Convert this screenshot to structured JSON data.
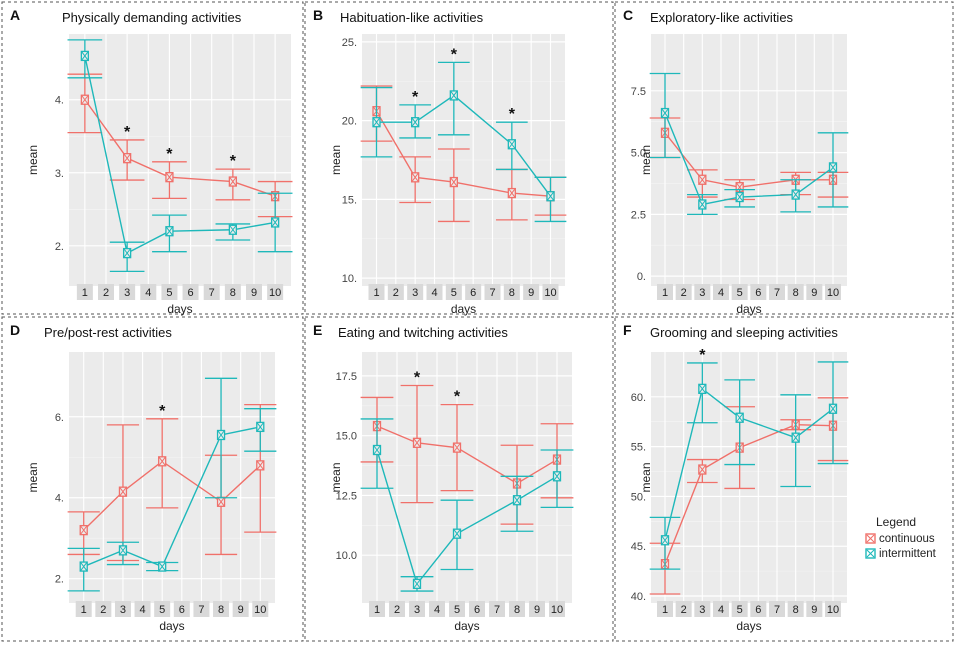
{
  "legend": {
    "title": "Legend",
    "items": [
      {
        "label": "continuous",
        "color": "#F0706A"
      },
      {
        "label": "intermittent",
        "color": "#1EB8BA"
      }
    ]
  },
  "chart_data": [
    {
      "letter": "A",
      "type": "line",
      "title": "Physically demanding activities",
      "xlabel": "days",
      "ylabel": "mean",
      "ylim": [
        1.45,
        4.9
      ],
      "yticks": [
        "2.",
        "3.",
        "4."
      ],
      "ytick_values": [
        2,
        3,
        4
      ],
      "categories": [
        "1",
        "2",
        "3",
        "4",
        "5",
        "6",
        "7",
        "8",
        "9",
        "10"
      ],
      "significant_days": [
        "3",
        "5",
        "8"
      ],
      "series": [
        {
          "name": "continuous",
          "x": [
            1,
            3,
            5,
            8,
            10
          ],
          "values": [
            4.0,
            3.2,
            2.94,
            2.88,
            2.68
          ],
          "lower": [
            3.55,
            2.9,
            2.65,
            2.63,
            2.4
          ],
          "upper": [
            4.35,
            3.45,
            3.15,
            3.05,
            2.88
          ]
        },
        {
          "name": "intermittent",
          "x": [
            1,
            3,
            5,
            8,
            10
          ],
          "values": [
            4.6,
            1.9,
            2.2,
            2.22,
            2.32
          ],
          "lower": [
            4.3,
            1.65,
            1.92,
            2.08,
            1.92
          ],
          "upper": [
            4.82,
            2.05,
            2.42,
            2.3,
            2.72
          ]
        }
      ]
    },
    {
      "letter": "B",
      "type": "line",
      "title": "Habituation-like activities",
      "xlabel": "days",
      "ylabel": "mean",
      "ylim": [
        9.5,
        25.5
      ],
      "yticks": [
        "10.",
        "15.",
        "20.",
        "25."
      ],
      "ytick_values": [
        10,
        15,
        20,
        25
      ],
      "categories": [
        "1",
        "2",
        "3",
        "4",
        "5",
        "6",
        "7",
        "8",
        "9",
        "10"
      ],
      "significant_days": [
        "3",
        "5",
        "8"
      ],
      "series": [
        {
          "name": "continuous",
          "x": [
            1,
            3,
            5,
            8,
            10
          ],
          "values": [
            20.6,
            16.4,
            16.1,
            15.4,
            15.2
          ],
          "lower": [
            18.7,
            14.8,
            13.6,
            13.7,
            14.0
          ],
          "upper": [
            22.2,
            17.7,
            18.2,
            16.9,
            16.4
          ]
        },
        {
          "name": "intermittent",
          "x": [
            1,
            3,
            5,
            8,
            10
          ],
          "values": [
            19.9,
            19.9,
            21.6,
            18.5,
            15.2
          ],
          "lower": [
            17.7,
            18.9,
            19.1,
            16.9,
            13.6
          ],
          "upper": [
            22.1,
            21.0,
            23.7,
            19.9,
            16.4
          ]
        }
      ]
    },
    {
      "letter": "C",
      "type": "line",
      "title": "Exploratory-like activities",
      "xlabel": "days",
      "ylabel": "mean",
      "ylim": [
        -0.4,
        9.8
      ],
      "yticks": [
        "0.",
        "2.5",
        "5.0",
        "7.5"
      ],
      "ytick_values": [
        0,
        2.5,
        5,
        7.5
      ],
      "categories": [
        "1",
        "2",
        "3",
        "4",
        "5",
        "6",
        "7",
        "8",
        "9",
        "10"
      ],
      "significant_days": [],
      "series": [
        {
          "name": "continuous",
          "x": [
            1,
            3,
            5,
            8,
            10
          ],
          "values": [
            5.8,
            3.9,
            3.6,
            3.9,
            3.9
          ],
          "lower": [
            4.8,
            3.2,
            3.1,
            3.3,
            3.2
          ],
          "upper": [
            6.4,
            4.3,
            3.9,
            4.2,
            4.2
          ]
        },
        {
          "name": "intermittent",
          "x": [
            1,
            3,
            5,
            8,
            10
          ],
          "values": [
            6.6,
            2.9,
            3.2,
            3.3,
            4.4
          ],
          "lower": [
            4.8,
            2.5,
            2.8,
            2.6,
            2.8
          ],
          "upper": [
            8.2,
            3.3,
            3.5,
            3.9,
            5.8
          ]
        }
      ]
    },
    {
      "letter": "D",
      "type": "line",
      "title": "Pre/post-rest activities",
      "xlabel": "days",
      "ylabel": "mean",
      "ylim": [
        1.4,
        7.6
      ],
      "yticks": [
        "2.",
        "4.",
        "6."
      ],
      "ytick_values": [
        2,
        4,
        6
      ],
      "categories": [
        "1",
        "2",
        "3",
        "4",
        "5",
        "6",
        "7",
        "8",
        "9",
        "10"
      ],
      "significant_days": [
        "5"
      ],
      "series": [
        {
          "name": "continuous",
          "x": [
            1,
            3,
            5,
            8,
            10
          ],
          "values": [
            3.2,
            4.15,
            4.9,
            3.9,
            4.8
          ],
          "lower": [
            2.6,
            2.45,
            3.75,
            2.6,
            3.15
          ],
          "upper": [
            3.65,
            5.8,
            5.95,
            5.05,
            6.3
          ]
        },
        {
          "name": "intermittent",
          "x": [
            1,
            3,
            5,
            8,
            10
          ],
          "values": [
            2.3,
            2.7,
            2.3,
            5.55,
            5.75
          ],
          "lower": [
            1.7,
            2.35,
            2.2,
            4.0,
            5.15
          ],
          "upper": [
            2.75,
            2.9,
            2.4,
            6.95,
            6.2
          ]
        }
      ]
    },
    {
      "letter": "E",
      "type": "line",
      "title": "Eating and twitching activities",
      "xlabel": "days",
      "ylabel": "mean",
      "ylim": [
        8.0,
        18.5
      ],
      "yticks": [
        "10.0",
        "12.5",
        "15.0",
        "17.5"
      ],
      "ytick_values": [
        10,
        12.5,
        15,
        17.5
      ],
      "categories": [
        "1",
        "2",
        "3",
        "4",
        "5",
        "6",
        "7",
        "8",
        "9",
        "10"
      ],
      "significant_days": [
        "3",
        "5"
      ],
      "series": [
        {
          "name": "continuous",
          "x": [
            1,
            3,
            5,
            8,
            10
          ],
          "values": [
            15.4,
            14.7,
            14.5,
            13.0,
            14.0
          ],
          "lower": [
            13.9,
            12.2,
            12.7,
            11.3,
            12.4
          ],
          "upper": [
            16.6,
            17.1,
            16.3,
            14.6,
            15.5
          ]
        },
        {
          "name": "intermittent",
          "x": [
            1,
            3,
            5,
            8,
            10
          ],
          "values": [
            14.4,
            8.8,
            10.9,
            12.3,
            13.3
          ],
          "lower": [
            12.8,
            8.5,
            9.4,
            11.0,
            12.0
          ],
          "upper": [
            15.7,
            9.1,
            12.3,
            13.3,
            14.4
          ]
        }
      ]
    },
    {
      "letter": "F",
      "type": "line",
      "title": "Grooming and sleeping activities",
      "xlabel": "days",
      "ylabel": "mean",
      "ylim": [
        39.3,
        64.5
      ],
      "yticks": [
        "40.",
        "45.",
        "50.",
        "55.",
        "60."
      ],
      "ytick_values": [
        40,
        45,
        50,
        55,
        60
      ],
      "categories": [
        "1",
        "2",
        "3",
        "4",
        "5",
        "6",
        "7",
        "8",
        "9",
        "10"
      ],
      "significant_days": [
        "3"
      ],
      "series": [
        {
          "name": "continuous",
          "x": [
            1,
            3,
            5,
            8,
            10
          ],
          "values": [
            43.2,
            52.7,
            54.9,
            57.2,
            57.1
          ],
          "lower": [
            40.2,
            51.4,
            50.8,
            56.7,
            53.6
          ],
          "upper": [
            45.3,
            53.7,
            59.0,
            57.7,
            59.9
          ]
        },
        {
          "name": "intermittent",
          "x": [
            1,
            3,
            5,
            8,
            10
          ],
          "values": [
            45.6,
            60.8,
            57.9,
            55.9,
            58.8
          ],
          "lower": [
            42.7,
            57.4,
            53.2,
            51.0,
            53.3
          ],
          "upper": [
            47.9,
            63.4,
            61.7,
            60.2,
            63.5
          ]
        }
      ]
    }
  ]
}
